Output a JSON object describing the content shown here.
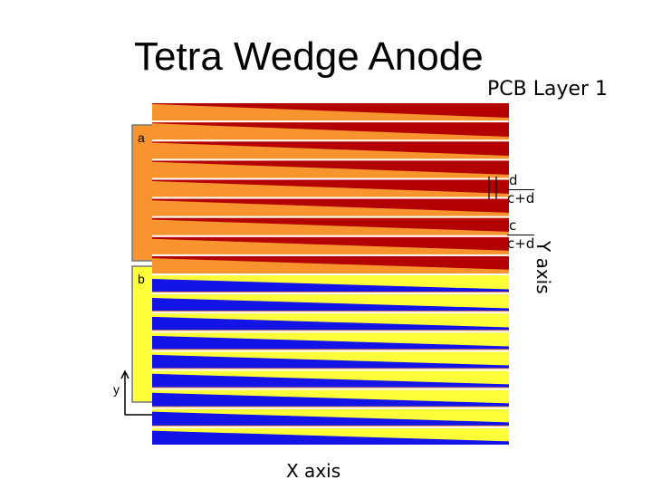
{
  "title": "Tetra Wedge Anode",
  "subtitle": "PCB Layer 1",
  "x_axis_label": "X axis",
  "y_axis_label": "Y axis",
  "pad_labels": {
    "a": "a",
    "b": "b"
  },
  "small_axis_label": "y",
  "fractions": [
    {
      "num": "d",
      "den": "c+d"
    },
    {
      "num": "c",
      "den": "c+d"
    }
  ],
  "colors": {
    "orange": "#f7942e",
    "red": "#b30000",
    "yellow": "#ffff3a",
    "blue": "#1414e6",
    "white": "#ffffff"
  },
  "strip_count": 18
}
